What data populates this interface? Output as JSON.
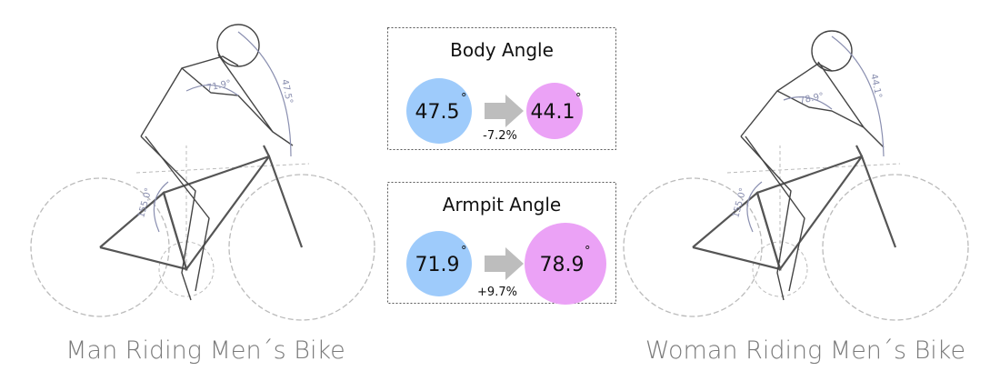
{
  "panels": [
    {
      "caption": "Man Riding Men´s Bike",
      "angles": [
        "71.9°",
        "47.5°",
        "155.0°"
      ]
    },
    {
      "caption": "Woman Riding Men´s Bike",
      "angles": [
        "78.9°",
        "44.1°",
        "155.0°"
      ]
    }
  ],
  "comparisons": [
    {
      "title": "Body Angle",
      "from": "47.5",
      "to": "44.1",
      "change": "-7.2%"
    },
    {
      "title": "Armpit Angle",
      "from": "71.9",
      "to": "78.9",
      "change": "+9.7%"
    }
  ],
  "degree_symbol": "°"
}
